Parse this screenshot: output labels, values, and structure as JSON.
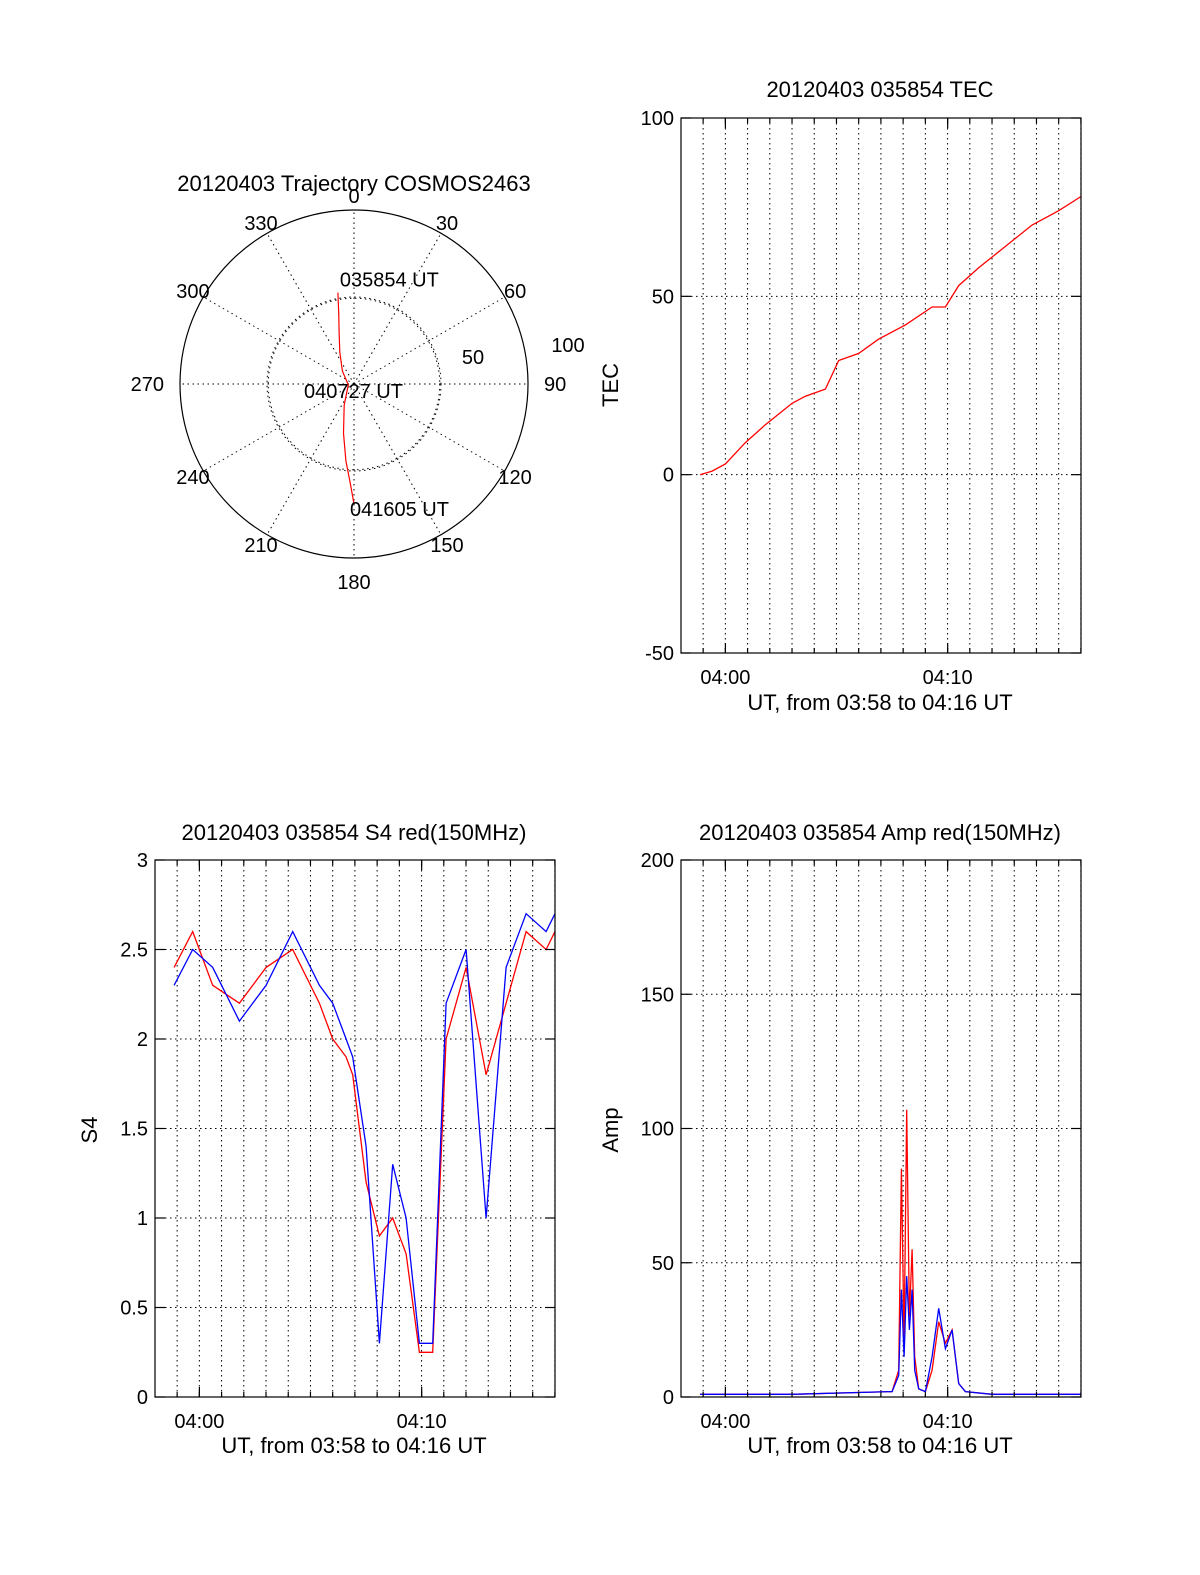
{
  "chart_data": [
    {
      "id": "polar",
      "type": "scatter",
      "title": "20120403 Trajectory COSMOS2463",
      "azimuth_labels": [
        "0",
        "30",
        "60",
        "90",
        "120",
        "150",
        "180",
        "210",
        "240",
        "270",
        "300",
        "330"
      ],
      "radial_labels": [
        "50",
        "100"
      ],
      "trajectory_color": "#ff0000",
      "trajectory_points": [
        {
          "az": 350,
          "el": 42
        },
        {
          "az": 348,
          "el": 52
        },
        {
          "az": 344,
          "el": 62
        },
        {
          "az": 336,
          "el": 72
        },
        {
          "az": 318,
          "el": 81
        },
        {
          "az": 262,
          "el": 87
        },
        {
          "az": 205,
          "el": 78
        },
        {
          "az": 192,
          "el": 64
        },
        {
          "az": 186,
          "el": 50
        },
        {
          "az": 182,
          "el": 38
        },
        {
          "az": 180,
          "el": 28
        }
      ],
      "annotations": [
        {
          "text": "035854 UT",
          "az": 350,
          "el": 42
        },
        {
          "text": "040727 UT",
          "az": 0,
          "el": 90
        },
        {
          "text": "041605 UT",
          "az": 180,
          "el": 28
        }
      ]
    },
    {
      "id": "tec",
      "type": "line",
      "title": "20120403 035854 TEC",
      "xlabel": "UT, from 03:58 to 04:16 UT",
      "ylabel": "TEC",
      "xlim": [
        3.9667,
        4.2667
      ],
      "ylim": [
        -50,
        100
      ],
      "xticks": [
        {
          "v": 4.0,
          "label": "04:00"
        },
        {
          "v": 4.1667,
          "label": "04:10"
        }
      ],
      "yticks": [
        {
          "v": -50,
          "label": "-50"
        },
        {
          "v": 0,
          "label": "0"
        },
        {
          "v": 50,
          "label": "50"
        },
        {
          "v": 100,
          "label": "100"
        }
      ],
      "grid": true,
      "series": [
        {
          "color": "#ff0000",
          "x": [
            3.981,
            3.99,
            4.0,
            4.015,
            4.03,
            4.05,
            4.06,
            4.075,
            4.085,
            4.1,
            4.115,
            4.135,
            4.155,
            4.165,
            4.175,
            4.19,
            4.21,
            4.23,
            4.25,
            4.2667
          ],
          "y": [
            0,
            1,
            3,
            9,
            14,
            20,
            22,
            24,
            32,
            34,
            38,
            42,
            47,
            47,
            53,
            58,
            64,
            70,
            74,
            78
          ]
        }
      ]
    },
    {
      "id": "s4",
      "type": "line",
      "title": "20120403 035854 S4 red(150MHz)",
      "xlabel": "UT, from 03:58 to 04:16 UT",
      "ylabel": "S4",
      "xlim": [
        3.9667,
        4.2667
      ],
      "ylim": [
        0,
        3
      ],
      "xticks": [
        {
          "v": 4.0,
          "label": "04:00"
        },
        {
          "v": 4.1667,
          "label": "04:10"
        }
      ],
      "yticks": [
        {
          "v": 0,
          "label": "0"
        },
        {
          "v": 0.5,
          "label": "0.5"
        },
        {
          "v": 1,
          "label": "1"
        },
        {
          "v": 1.5,
          "label": "1.5"
        },
        {
          "v": 2,
          "label": "2"
        },
        {
          "v": 2.5,
          "label": "2.5"
        },
        {
          "v": 3,
          "label": "3"
        }
      ],
      "grid": true,
      "series": [
        {
          "color": "#ff0000",
          "x": [
            3.981,
            3.995,
            4.01,
            4.03,
            4.05,
            4.07,
            4.09,
            4.1,
            4.11,
            4.115,
            4.125,
            4.135,
            4.145,
            4.155,
            4.165,
            4.175,
            4.185,
            4.2,
            4.215,
            4.23,
            4.245,
            4.26,
            4.2667
          ],
          "y": [
            2.4,
            2.6,
            2.3,
            2.2,
            2.4,
            2.5,
            2.2,
            2.0,
            1.9,
            1.8,
            1.2,
            0.9,
            1.0,
            0.8,
            0.25,
            0.25,
            2.0,
            2.4,
            1.8,
            2.2,
            2.6,
            2.5,
            2.6
          ]
        },
        {
          "color": "#0000ff",
          "x": [
            3.981,
            3.995,
            4.01,
            4.03,
            4.05,
            4.07,
            4.09,
            4.1,
            4.11,
            4.115,
            4.125,
            4.135,
            4.145,
            4.155,
            4.165,
            4.175,
            4.185,
            4.2,
            4.215,
            4.23,
            4.245,
            4.26,
            4.2667
          ],
          "y": [
            2.3,
            2.5,
            2.4,
            2.1,
            2.3,
            2.6,
            2.3,
            2.2,
            2.0,
            1.9,
            1.4,
            0.3,
            1.3,
            1.0,
            0.3,
            0.3,
            2.2,
            2.5,
            1.0,
            2.4,
            2.7,
            2.6,
            2.7
          ]
        }
      ]
    },
    {
      "id": "amp",
      "type": "line",
      "title": "20120403 035854 Amp red(150MHz)",
      "xlabel": "UT, from 03:58 to 04:16 UT",
      "ylabel": "Amp",
      "xlim": [
        3.9667,
        4.2667
      ],
      "ylim": [
        0,
        200
      ],
      "xticks": [
        {
          "v": 4.0,
          "label": "04:00"
        },
        {
          "v": 4.1667,
          "label": "04:10"
        }
      ],
      "yticks": [
        {
          "v": 0,
          "label": "0"
        },
        {
          "v": 50,
          "label": "50"
        },
        {
          "v": 100,
          "label": "100"
        },
        {
          "v": 150,
          "label": "150"
        },
        {
          "v": 200,
          "label": "200"
        }
      ],
      "grid": true,
      "series": [
        {
          "color": "#ff0000",
          "x": [
            3.981,
            4.05,
            4.125,
            4.13,
            4.132,
            4.134,
            4.136,
            4.138,
            4.14,
            4.142,
            4.145,
            4.15,
            4.155,
            4.16,
            4.165,
            4.17,
            4.175,
            4.18,
            4.2,
            4.2667
          ],
          "y": [
            1,
            1,
            2,
            10,
            85,
            20,
            107,
            30,
            55,
            15,
            3,
            2,
            10,
            28,
            20,
            25,
            5,
            2,
            1,
            1
          ]
        },
        {
          "color": "#0000ff",
          "x": [
            3.981,
            4.05,
            4.125,
            4.13,
            4.132,
            4.134,
            4.136,
            4.138,
            4.14,
            4.142,
            4.145,
            4.15,
            4.155,
            4.16,
            4.165,
            4.17,
            4.175,
            4.18,
            4.2,
            4.2667
          ],
          "y": [
            1,
            1,
            2,
            8,
            40,
            15,
            45,
            25,
            40,
            10,
            3,
            2,
            15,
            33,
            18,
            25,
            5,
            2,
            1,
            1
          ]
        }
      ]
    }
  ]
}
